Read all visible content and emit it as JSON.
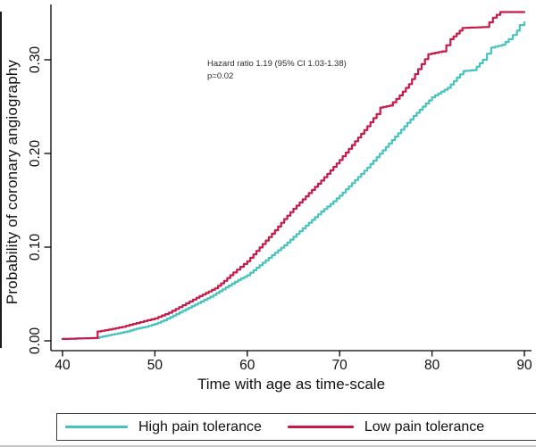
{
  "chart_data": {
    "type": "line",
    "subtype": "kaplan-meier-step",
    "title": "",
    "xlabel": "Time with age as time-scale",
    "ylabel": "Probability of coronary angiography",
    "xlim": [
      40,
      90
    ],
    "ylim": [
      0,
      0.355
    ],
    "x_ticks": [
      40,
      50,
      60,
      70,
      80,
      90
    ],
    "y_ticks": [
      "0.00",
      "0.10",
      "0.20",
      "0.30"
    ],
    "y_tick_values": [
      0.0,
      0.1,
      0.2,
      0.3
    ],
    "grid": false,
    "legend_position": "bottom",
    "annotations": [
      "Hazard ratio 1.19 (95% CI 1.03-1.38)",
      "p=0.02"
    ],
    "axis_color": "#000000",
    "series": [
      {
        "name": "High pain tolerance",
        "color": "#46C3BD",
        "points": [
          [
            40,
            0.002
          ],
          [
            43.5,
            0.003
          ],
          [
            44,
            0.004
          ],
          [
            45,
            0.006
          ],
          [
            46,
            0.008
          ],
          [
            47,
            0.01
          ],
          [
            48,
            0.013
          ],
          [
            49,
            0.015
          ],
          [
            50,
            0.018
          ],
          [
            51,
            0.022
          ],
          [
            52,
            0.027
          ],
          [
            53,
            0.032
          ],
          [
            54,
            0.037
          ],
          [
            55,
            0.042
          ],
          [
            56,
            0.047
          ],
          [
            57,
            0.053
          ],
          [
            58,
            0.059
          ],
          [
            59,
            0.065
          ],
          [
            60,
            0.07
          ],
          [
            61,
            0.078
          ],
          [
            62,
            0.086
          ],
          [
            63,
            0.094
          ],
          [
            64,
            0.102
          ],
          [
            65,
            0.111
          ],
          [
            66,
            0.12
          ],
          [
            67,
            0.129
          ],
          [
            68,
            0.138
          ],
          [
            69,
            0.146
          ],
          [
            70,
            0.155
          ],
          [
            71,
            0.165
          ],
          [
            72,
            0.175
          ],
          [
            73,
            0.185
          ],
          [
            74,
            0.196
          ],
          [
            75,
            0.207
          ],
          [
            76,
            0.218
          ],
          [
            77,
            0.229
          ],
          [
            78,
            0.24
          ],
          [
            79,
            0.25
          ],
          [
            80,
            0.26
          ],
          [
            81,
            0.266
          ],
          [
            81.7,
            0.27
          ],
          [
            82.7,
            0.281
          ],
          [
            83.4,
            0.288
          ],
          [
            84.5,
            0.289
          ],
          [
            85.5,
            0.3
          ],
          [
            86.4,
            0.313
          ],
          [
            87.6,
            0.316
          ],
          [
            88.3,
            0.322
          ],
          [
            89.2,
            0.331
          ],
          [
            89.5,
            0.337
          ],
          [
            90,
            0.34
          ]
        ]
      },
      {
        "name": "Low pain tolerance",
        "color": "#C51A4A",
        "points": [
          [
            40,
            0.002
          ],
          [
            43.4,
            0.003
          ],
          [
            43.8,
            0.01
          ],
          [
            45,
            0.012
          ],
          [
            46.5,
            0.015
          ],
          [
            48,
            0.019
          ],
          [
            50,
            0.024
          ],
          [
            51.5,
            0.03
          ],
          [
            53,
            0.038
          ],
          [
            54.5,
            0.046
          ],
          [
            55.5,
            0.051
          ],
          [
            56.5,
            0.056
          ],
          [
            57.5,
            0.064
          ],
          [
            58.5,
            0.073
          ],
          [
            60,
            0.085
          ],
          [
            61,
            0.096
          ],
          [
            62,
            0.107
          ],
          [
            63,
            0.118
          ],
          [
            64,
            0.13
          ],
          [
            65,
            0.141
          ],
          [
            66,
            0.151
          ],
          [
            67,
            0.161
          ],
          [
            68,
            0.171
          ],
          [
            69,
            0.182
          ],
          [
            70,
            0.193
          ],
          [
            71,
            0.205
          ],
          [
            72,
            0.217
          ],
          [
            73,
            0.229
          ],
          [
            74,
            0.242
          ],
          [
            74.4,
            0.249
          ],
          [
            75.4,
            0.251
          ],
          [
            76.5,
            0.262
          ],
          [
            77.5,
            0.274
          ],
          [
            78.5,
            0.29
          ],
          [
            79.6,
            0.306
          ],
          [
            81.1,
            0.309
          ],
          [
            82,
            0.322
          ],
          [
            83,
            0.331
          ],
          [
            83.3,
            0.334
          ],
          [
            85.8,
            0.335
          ],
          [
            86.6,
            0.345
          ],
          [
            87.4,
            0.351
          ],
          [
            90,
            0.351
          ]
        ]
      }
    ]
  }
}
